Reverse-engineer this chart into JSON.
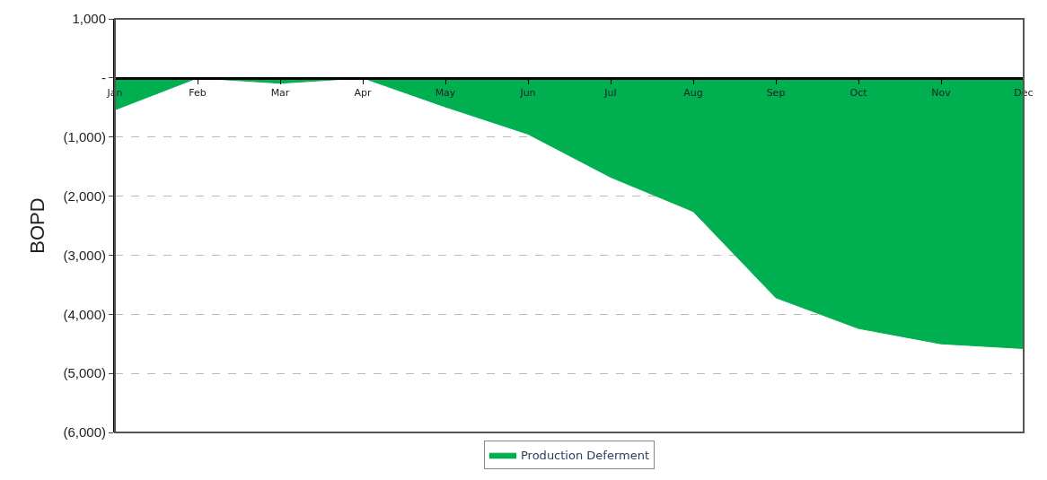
{
  "chart_data": {
    "type": "area",
    "ylabel": "BOPD",
    "categories": [
      "Jan",
      "Feb",
      "Mar",
      "Apr",
      "May",
      "Jun",
      "Jul",
      "Aug",
      "Sep",
      "Oct",
      "Nov",
      "Dec"
    ],
    "series": [
      {
        "name": "Production Deferment",
        "color": "#00b050",
        "values": [
          -540,
          0,
          -90,
          0,
          -490,
          -950,
          -1680,
          -2260,
          -3720,
          -4240,
          -4500,
          -4580
        ]
      }
    ],
    "ylim": [
      -6000,
      1000
    ],
    "yticks": [
      {
        "value": 1000,
        "label": "1,000"
      },
      {
        "value": 0,
        "label": "-"
      },
      {
        "value": -1000,
        "label": "(1,000)"
      },
      {
        "value": -2000,
        "label": "(2,000)"
      },
      {
        "value": -3000,
        "label": "(3,000)"
      },
      {
        "value": -4000,
        "label": "(4,000)"
      },
      {
        "value": -5000,
        "label": "(5,000)"
      },
      {
        "value": -6000,
        "label": "(6,000)"
      }
    ],
    "grid": "y",
    "legend": "bottom"
  }
}
